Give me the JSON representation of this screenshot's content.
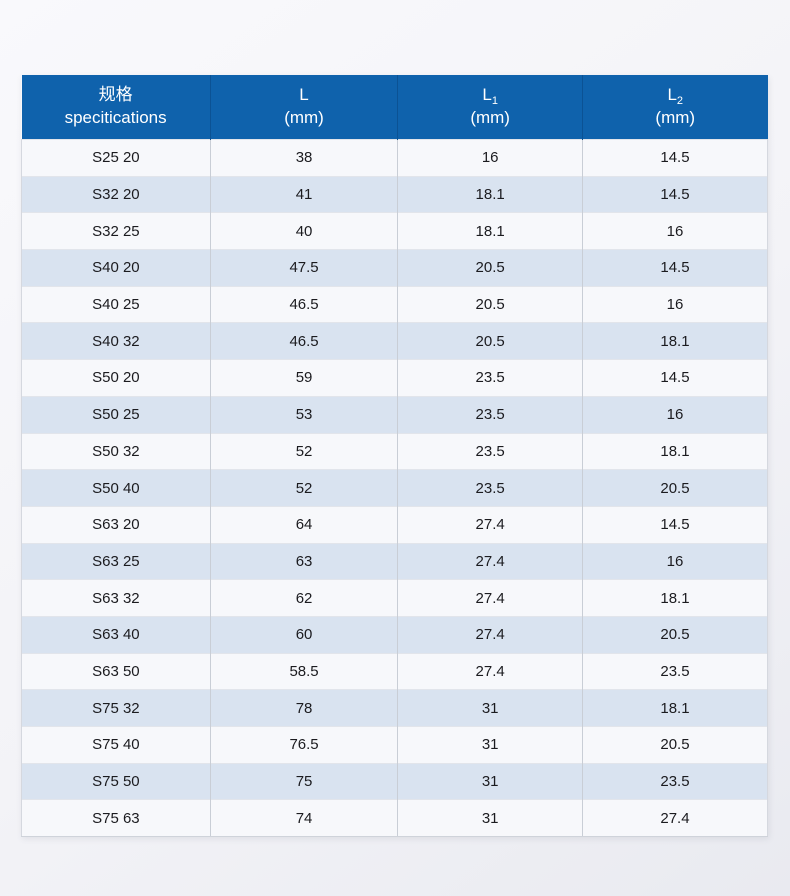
{
  "colors": {
    "header_bg": "#0f62ac",
    "header_text": "#ffffff",
    "header_divider": "#0b5294",
    "row_odd_bg": "#f7f8fb",
    "row_even_bg": "#d9e3f0",
    "body_divider": "#c9ced6",
    "body_text": "#1b1b1f",
    "page_bg_start": "#f9f9fc",
    "page_bg_end": "#e9eaf0"
  },
  "chart_data": {
    "type": "table",
    "title": "",
    "legend_position": "none",
    "columns": [
      {
        "line1": "规格",
        "sub": "",
        "line2": "specitications"
      },
      {
        "line1": "L",
        "sub": "",
        "line2": "(mm)"
      },
      {
        "line1": "L",
        "sub": "1",
        "line2": "(mm)"
      },
      {
        "line1": "L",
        "sub": "2",
        "line2": "(mm)"
      }
    ],
    "rows": [
      [
        "S25 20",
        "38",
        "16",
        "14.5"
      ],
      [
        "S32 20",
        "41",
        "18.1",
        "14.5"
      ],
      [
        "S32 25",
        "40",
        "18.1",
        "16"
      ],
      [
        "S40 20",
        "47.5",
        "20.5",
        "14.5"
      ],
      [
        "S40 25",
        "46.5",
        "20.5",
        "16"
      ],
      [
        "S40 32",
        "46.5",
        "20.5",
        "18.1"
      ],
      [
        "S50 20",
        "59",
        "23.5",
        "14.5"
      ],
      [
        "S50 25",
        "53",
        "23.5",
        "16"
      ],
      [
        "S50 32",
        "52",
        "23.5",
        "18.1"
      ],
      [
        "S50 40",
        "52",
        "23.5",
        "20.5"
      ],
      [
        "S63 20",
        "64",
        "27.4",
        "14.5"
      ],
      [
        "S63 25",
        "63",
        "27.4",
        "16"
      ],
      [
        "S63 32",
        "62",
        "27.4",
        "18.1"
      ],
      [
        "S63 40",
        "60",
        "27.4",
        "20.5"
      ],
      [
        "S63 50",
        "58.5",
        "27.4",
        "23.5"
      ],
      [
        "S75 32",
        "78",
        "31",
        "18.1"
      ],
      [
        "S75 40",
        "76.5",
        "31",
        "20.5"
      ],
      [
        "S75 50",
        "75",
        "31",
        "23.5"
      ],
      [
        "S75 63",
        "74",
        "31",
        "27.4"
      ]
    ]
  }
}
